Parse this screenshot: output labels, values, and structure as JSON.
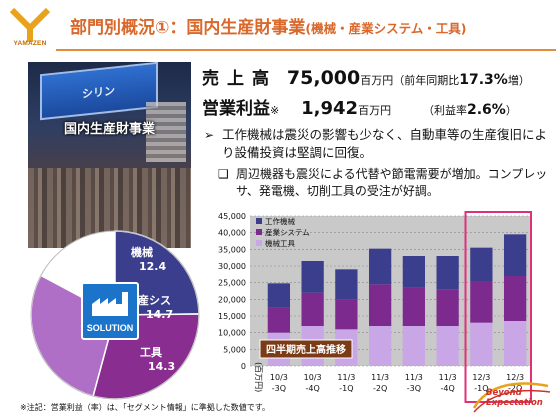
{
  "logo": {
    "text": "YAMAZEN"
  },
  "header": {
    "title_main": "部門別概況①：国内生産財事業",
    "title_sub": "(機械・産業システム・工具)"
  },
  "photo": {
    "label": "国内生産財事業",
    "banner_text": "シリン"
  },
  "metrics": {
    "sales": {
      "label": "売上高",
      "value": "75,000",
      "unit": "百万円",
      "note_prefix": "（前年同期比",
      "note_value": "17.3%",
      "note_suffix": "増）"
    },
    "profit": {
      "label": "営業利益",
      "mark": "※",
      "value": "1,942",
      "unit": "百万円",
      "note_prefix": "（利益率",
      "note_value": "2.6%",
      "note_suffix": "）"
    }
  },
  "bullets": {
    "main": {
      "marker": "➢",
      "text": "工作機械は震災の影響も少なく、自動車等の生産復旧により設備投資は堅調に回復。"
    },
    "sub": {
      "marker": "❑",
      "text": "周辺機器も震災による代替や節電需要が増加。コンプレッサ、発電機、切削工具の受注が好調。"
    }
  },
  "pie": {
    "slices": [
      {
        "name": "機械",
        "value": 12.4,
        "color": "#3b3e8c"
      },
      {
        "name": "産シス",
        "value": 14.7,
        "color": "#8a2d91"
      },
      {
        "name": "工具",
        "value": 14.3,
        "color": "#b06fc6"
      }
    ],
    "solution_label": "SOLUTION",
    "icon": "factory-icon"
  },
  "chart_data": {
    "type": "bar",
    "stacked": true,
    "categories": [
      "10/3\n-3Q",
      "10/3\n-4Q",
      "11/3\n-1Q",
      "11/3\n-2Q",
      "11/3\n-3Q",
      "11/3\n-4Q",
      "12/3\n-1Q",
      "12/3\n-2Q"
    ],
    "series": [
      {
        "name": "機械工具",
        "color": "#c9a7e6",
        "values": [
          10000,
          12000,
          11000,
          12000,
          12000,
          12000,
          13000,
          13500
        ]
      },
      {
        "name": "産業システム",
        "color": "#7d2a8f",
        "values": [
          7500,
          10000,
          9000,
          12500,
          11500,
          11000,
          12500,
          13500
        ]
      },
      {
        "name": "工作機械",
        "color": "#3b3e8c",
        "values": [
          7300,
          9500,
          9000,
          10700,
          9500,
          10000,
          10000,
          12500
        ]
      }
    ],
    "ylim": [
      0,
      45000
    ],
    "yticks": [
      "0",
      "5,000",
      "10,000",
      "15,000",
      "20,000",
      "25,000",
      "30,000",
      "35,000",
      "40,000",
      "45,000"
    ],
    "yunit": "(百万円)",
    "inset_label": "四半期売上高推移",
    "grid": true,
    "legend": "top-left",
    "highlight_categories": [
      6,
      7
    ],
    "highlight_color": "#e0307a",
    "colors": {
      "plot_bg": "#c9c9c9",
      "inset_bg": "#7a3b16"
    }
  },
  "footnote": "※注記：営業利益（率）は、「セグメント情報」に準拠した数値です。",
  "brand": {
    "line1": "Beyond",
    "line2": "Expectation"
  }
}
